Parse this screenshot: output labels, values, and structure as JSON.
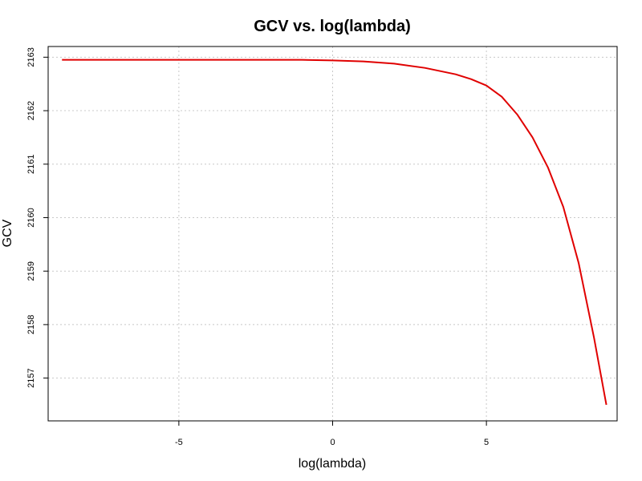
{
  "chart_data": {
    "type": "line",
    "title": "GCV vs. log(lambda)",
    "xlabel": "log(lambda)",
    "ylabel": "GCV",
    "xlim": [
      -9.25,
      9.25
    ],
    "ylim": [
      2156.2,
      2163.2
    ],
    "x_ticks": [
      -5,
      0,
      5
    ],
    "x_tick_labels": [
      "-5",
      "0",
      "5"
    ],
    "y_ticks": [
      2157,
      2158,
      2159,
      2160,
      2161,
      2162,
      2163
    ],
    "y_tick_labels": [
      "2157",
      "2158",
      "2159",
      "2160",
      "2161",
      "2162",
      "2163"
    ],
    "grid": true,
    "line_color": "#e00000",
    "series": [
      {
        "x": [
          -8.8,
          -6,
          -4,
          -2,
          -1,
          0,
          1,
          2,
          3,
          4,
          4.5,
          5,
          5.5,
          6,
          6.5,
          7,
          7.5,
          8,
          8.5,
          8.9
        ],
        "y": [
          2162.95,
          2162.95,
          2162.95,
          2162.95,
          2162.95,
          2162.94,
          2162.92,
          2162.88,
          2162.8,
          2162.68,
          2162.59,
          2162.47,
          2162.26,
          2161.93,
          2161.5,
          2160.94,
          2160.2,
          2159.15,
          2157.75,
          2156.5
        ]
      }
    ]
  }
}
